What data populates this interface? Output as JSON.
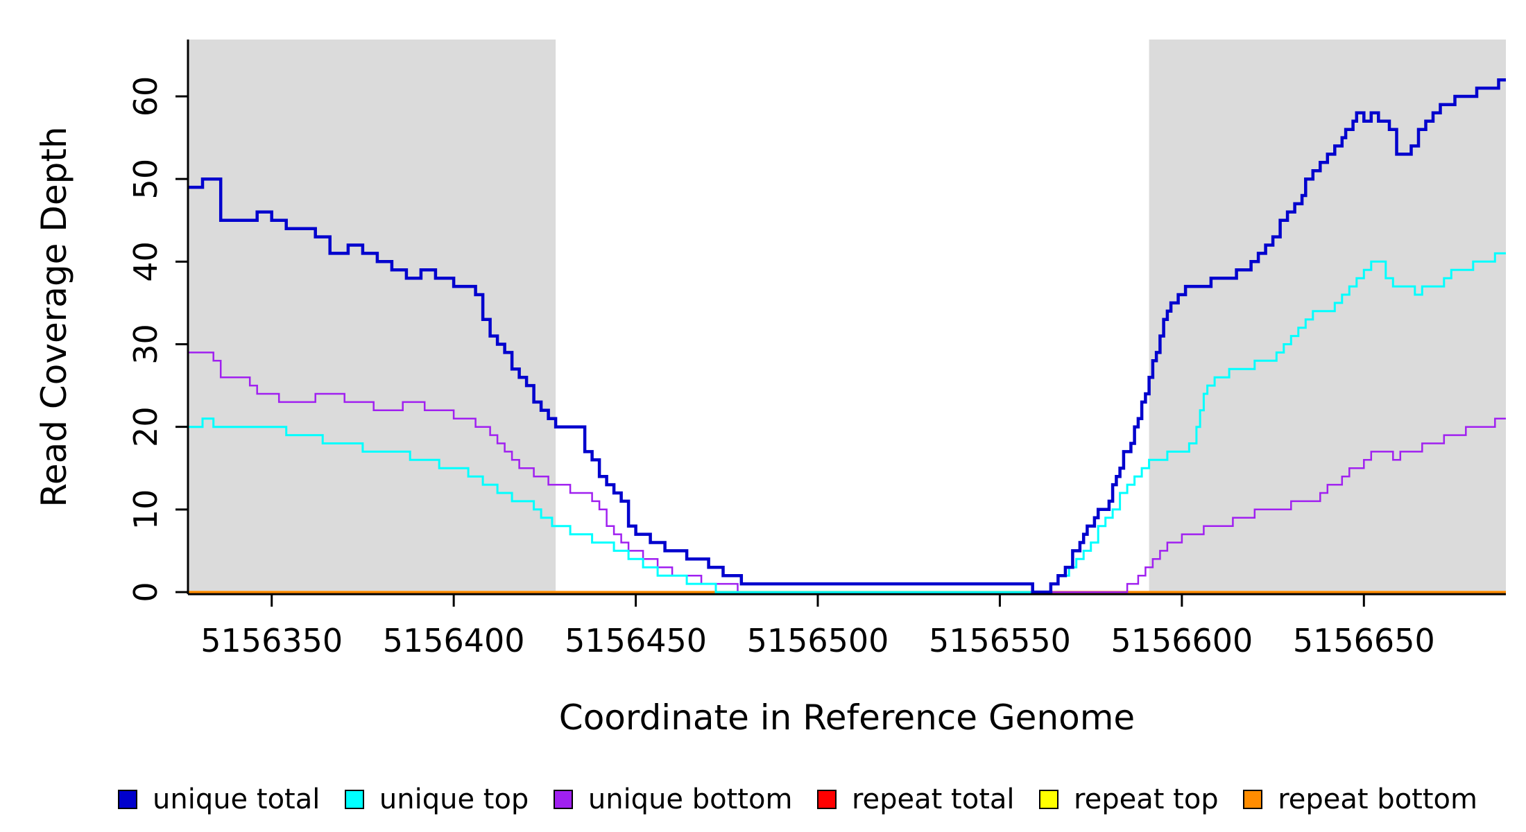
{
  "chart_data": {
    "type": "line",
    "subtype": "step",
    "title": "",
    "xlabel": "Coordinate in Reference Genome",
    "ylabel": "Read Coverage Depth",
    "x_range": [
      5156327,
      5156689
    ],
    "y_range": [
      0,
      62
    ],
    "xticks": [
      5156350,
      5156400,
      5156450,
      5156500,
      5156550,
      5156600,
      5156650
    ],
    "yticks": [
      0,
      10,
      20,
      30,
      40,
      50,
      60
    ],
    "grid": false,
    "legend_position": "bottom",
    "shaded_regions": [
      {
        "from": 5156327,
        "to": 5156428
      },
      {
        "from": 5156591,
        "to": 5156689
      }
    ],
    "region_color": "#DBDBDB",
    "series": [
      {
        "name": "repeat total",
        "color": "#FF0000",
        "width": 3,
        "points": [
          [
            5156327,
            0
          ]
        ]
      },
      {
        "name": "repeat top",
        "color": "#FFFF00",
        "width": 3,
        "points": [
          [
            5156327,
            0
          ]
        ]
      },
      {
        "name": "repeat bottom",
        "color": "#FF8C00",
        "width": 3.5,
        "points": [
          [
            5156327,
            0
          ]
        ]
      },
      {
        "name": "unique bottom",
        "color": "#A020F0",
        "width": 2.5,
        "points": [
          [
            5156327,
            29
          ],
          [
            5156334,
            28
          ],
          [
            5156336,
            26
          ],
          [
            5156344,
            25
          ],
          [
            5156346,
            24
          ],
          [
            5156352,
            23
          ],
          [
            5156362,
            24
          ],
          [
            5156370,
            23
          ],
          [
            5156378,
            22
          ],
          [
            5156386,
            23
          ],
          [
            5156392,
            22
          ],
          [
            5156400,
            21
          ],
          [
            5156406,
            20
          ],
          [
            5156410,
            19
          ],
          [
            5156412,
            18
          ],
          [
            5156414,
            17
          ],
          [
            5156416,
            16
          ],
          [
            5156418,
            15
          ],
          [
            5156422,
            14
          ],
          [
            5156426,
            13
          ],
          [
            5156432,
            12
          ],
          [
            5156438,
            11
          ],
          [
            5156440,
            10
          ],
          [
            5156442,
            8
          ],
          [
            5156444,
            7
          ],
          [
            5156446,
            6
          ],
          [
            5156448,
            5
          ],
          [
            5156452,
            4
          ],
          [
            5156456,
            3
          ],
          [
            5156460,
            2
          ],
          [
            5156468,
            1
          ],
          [
            5156478,
            0
          ],
          [
            5156585,
            1
          ],
          [
            5156588,
            2
          ],
          [
            5156590,
            3
          ],
          [
            5156592,
            4
          ],
          [
            5156594,
            5
          ],
          [
            5156596,
            6
          ],
          [
            5156600,
            7
          ],
          [
            5156606,
            8
          ],
          [
            5156614,
            9
          ],
          [
            5156620,
            10
          ],
          [
            5156630,
            11
          ],
          [
            5156638,
            12
          ],
          [
            5156640,
            13
          ],
          [
            5156644,
            14
          ],
          [
            5156646,
            15
          ],
          [
            5156650,
            16
          ],
          [
            5156652,
            17
          ],
          [
            5156658,
            16
          ],
          [
            5156660,
            17
          ],
          [
            5156666,
            18
          ],
          [
            5156672,
            19
          ],
          [
            5156678,
            20
          ],
          [
            5156686,
            21
          ]
        ]
      },
      {
        "name": "unique top",
        "color": "#00FFFF",
        "width": 3,
        "points": [
          [
            5156327,
            20
          ],
          [
            5156331,
            21
          ],
          [
            5156334,
            20
          ],
          [
            5156354,
            19
          ],
          [
            5156364,
            18
          ],
          [
            5156375,
            17
          ],
          [
            5156388,
            16
          ],
          [
            5156396,
            15
          ],
          [
            5156404,
            14
          ],
          [
            5156408,
            13
          ],
          [
            5156412,
            12
          ],
          [
            5156416,
            11
          ],
          [
            5156422,
            10
          ],
          [
            5156424,
            9
          ],
          [
            5156427,
            8
          ],
          [
            5156432,
            7
          ],
          [
            5156438,
            6
          ],
          [
            5156444,
            5
          ],
          [
            5156448,
            4
          ],
          [
            5156452,
            3
          ],
          [
            5156456,
            2
          ],
          [
            5156464,
            1
          ],
          [
            5156472,
            0
          ],
          [
            5156564,
            1
          ],
          [
            5156566,
            2
          ],
          [
            5156569,
            3
          ],
          [
            5156571,
            4
          ],
          [
            5156573,
            5
          ],
          [
            5156575,
            6
          ],
          [
            5156577,
            8
          ],
          [
            5156579,
            9
          ],
          [
            5156581,
            10
          ],
          [
            5156583,
            12
          ],
          [
            5156585,
            13
          ],
          [
            5156587,
            14
          ],
          [
            5156589,
            15
          ],
          [
            5156591,
            16
          ],
          [
            5156596,
            17
          ],
          [
            5156602,
            18
          ],
          [
            5156604,
            20
          ],
          [
            5156605,
            22
          ],
          [
            5156606,
            24
          ],
          [
            5156607,
            25
          ],
          [
            5156609,
            26
          ],
          [
            5156613,
            27
          ],
          [
            5156620,
            28
          ],
          [
            5156626,
            29
          ],
          [
            5156628,
            30
          ],
          [
            5156630,
            31
          ],
          [
            5156632,
            32
          ],
          [
            5156634,
            33
          ],
          [
            5156636,
            34
          ],
          [
            5156642,
            35
          ],
          [
            5156644,
            36
          ],
          [
            5156646,
            37
          ],
          [
            5156648,
            38
          ],
          [
            5156650,
            39
          ],
          [
            5156652,
            40
          ],
          [
            5156656,
            38
          ],
          [
            5156658,
            37
          ],
          [
            5156664,
            36
          ],
          [
            5156666,
            37
          ],
          [
            5156672,
            38
          ],
          [
            5156674,
            39
          ],
          [
            5156680,
            40
          ],
          [
            5156686,
            41
          ]
        ]
      },
      {
        "name": "unique total",
        "color": "#0000CD",
        "width": 4.5,
        "points": [
          [
            5156327,
            49
          ],
          [
            5156331,
            50
          ],
          [
            5156336,
            45
          ],
          [
            5156346,
            46
          ],
          [
            5156350,
            45
          ],
          [
            5156354,
            44
          ],
          [
            5156362,
            43
          ],
          [
            5156366,
            41
          ],
          [
            5156371,
            42
          ],
          [
            5156375,
            41
          ],
          [
            5156379,
            40
          ],
          [
            5156383,
            39
          ],
          [
            5156387,
            38
          ],
          [
            5156391,
            39
          ],
          [
            5156395,
            38
          ],
          [
            5156400,
            37
          ],
          [
            5156406,
            36
          ],
          [
            5156408,
            33
          ],
          [
            5156410,
            31
          ],
          [
            5156412,
            30
          ],
          [
            5156414,
            29
          ],
          [
            5156416,
            27
          ],
          [
            5156418,
            26
          ],
          [
            5156420,
            25
          ],
          [
            5156422,
            23
          ],
          [
            5156424,
            22
          ],
          [
            5156426,
            21
          ],
          [
            5156428,
            20
          ],
          [
            5156434,
            20
          ],
          [
            5156436,
            17
          ],
          [
            5156438,
            16
          ],
          [
            5156440,
            14
          ],
          [
            5156442,
            13
          ],
          [
            5156444,
            12
          ],
          [
            5156446,
            11
          ],
          [
            5156448,
            8
          ],
          [
            5156450,
            7
          ],
          [
            5156454,
            6
          ],
          [
            5156458,
            5
          ],
          [
            5156464,
            4
          ],
          [
            5156470,
            3
          ],
          [
            5156474,
            2
          ],
          [
            5156479,
            1
          ],
          [
            5156557,
            1
          ],
          [
            5156559,
            0
          ],
          [
            5156564,
            1
          ],
          [
            5156566,
            2
          ],
          [
            5156568,
            3
          ],
          [
            5156570,
            5
          ],
          [
            5156572,
            6
          ],
          [
            5156573,
            7
          ],
          [
            5156574,
            8
          ],
          [
            5156576,
            9
          ],
          [
            5156577,
            10
          ],
          [
            5156580,
            11
          ],
          [
            5156581,
            13
          ],
          [
            5156582,
            14
          ],
          [
            5156583,
            15
          ],
          [
            5156584,
            17
          ],
          [
            5156586,
            18
          ],
          [
            5156587,
            20
          ],
          [
            5156588,
            21
          ],
          [
            5156589,
            23
          ],
          [
            5156590,
            24
          ],
          [
            5156591,
            26
          ],
          [
            5156592,
            28
          ],
          [
            5156593,
            29
          ],
          [
            5156594,
            31
          ],
          [
            5156595,
            33
          ],
          [
            5156596,
            34
          ],
          [
            5156597,
            35
          ],
          [
            5156599,
            36
          ],
          [
            5156601,
            37
          ],
          [
            5156606,
            37
          ],
          [
            5156608,
            38
          ],
          [
            5156613,
            38
          ],
          [
            5156615,
            39
          ],
          [
            5156619,
            40
          ],
          [
            5156621,
            41
          ],
          [
            5156623,
            42
          ],
          [
            5156625,
            43
          ],
          [
            5156627,
            45
          ],
          [
            5156629,
            46
          ],
          [
            5156631,
            47
          ],
          [
            5156633,
            48
          ],
          [
            5156634,
            50
          ],
          [
            5156636,
            51
          ],
          [
            5156638,
            52
          ],
          [
            5156640,
            53
          ],
          [
            5156642,
            54
          ],
          [
            5156644,
            55
          ],
          [
            5156645,
            56
          ],
          [
            5156647,
            57
          ],
          [
            5156648,
            58
          ],
          [
            5156650,
            57
          ],
          [
            5156652,
            58
          ],
          [
            5156654,
            57
          ],
          [
            5156657,
            56
          ],
          [
            5156659,
            53
          ],
          [
            5156663,
            54
          ],
          [
            5156665,
            56
          ],
          [
            5156667,
            57
          ],
          [
            5156669,
            58
          ],
          [
            5156671,
            59
          ],
          [
            5156675,
            60
          ],
          [
            5156681,
            61
          ],
          [
            5156687,
            62
          ]
        ]
      }
    ],
    "legend": [
      {
        "label": "unique total",
        "color": "#0000CD"
      },
      {
        "label": "unique top",
        "color": "#00FFFF"
      },
      {
        "label": "unique bottom",
        "color": "#A020F0"
      },
      {
        "label": "repeat total",
        "color": "#FF0000"
      },
      {
        "label": "repeat top",
        "color": "#FFFF00"
      },
      {
        "label": "repeat bottom",
        "color": "#FF8C00"
      }
    ]
  }
}
